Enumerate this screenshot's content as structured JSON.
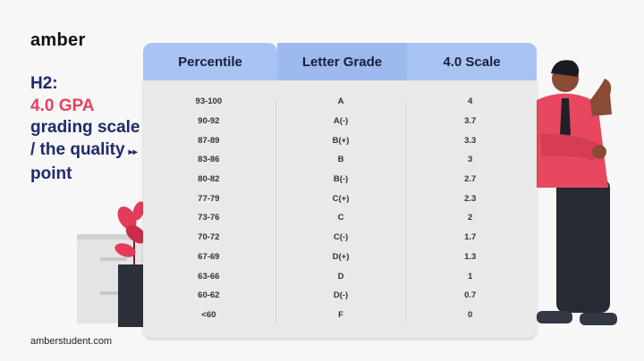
{
  "brand": {
    "logo": "amber",
    "footer_url": "amberstudent.com"
  },
  "heading": {
    "prefix": "H2:",
    "accent": "4.0 GPA",
    "rest": "grading scale / the quality",
    "arrow": "▸▸",
    "last": "point"
  },
  "colors": {
    "accent": "#ea3f5f",
    "heading": "#1f2a6b",
    "header_bg": "#a9c4f3",
    "table_bg": "#e9e9ea"
  },
  "table": {
    "headers": [
      "Percentile",
      "Letter Grade",
      "4.0 Scale"
    ],
    "rows": [
      [
        "93-100",
        "A",
        "4"
      ],
      [
        "90-92",
        "A(-)",
        "3.7"
      ],
      [
        "87-89",
        "B(+)",
        "3.3"
      ],
      [
        "83-86",
        "B",
        "3"
      ],
      [
        "80-82",
        "B(-)",
        "2.7"
      ],
      [
        "77-79",
        "C(+)",
        "2.3"
      ],
      [
        "73-76",
        "C",
        "2"
      ],
      [
        "70-72",
        "C(-)",
        "1.7"
      ],
      [
        "67-69",
        "D(+)",
        "1.3"
      ],
      [
        "63-66",
        "D",
        "1"
      ],
      [
        "60-62",
        "D(-)",
        "0.7"
      ],
      [
        "<60",
        "F",
        "0"
      ]
    ]
  }
}
